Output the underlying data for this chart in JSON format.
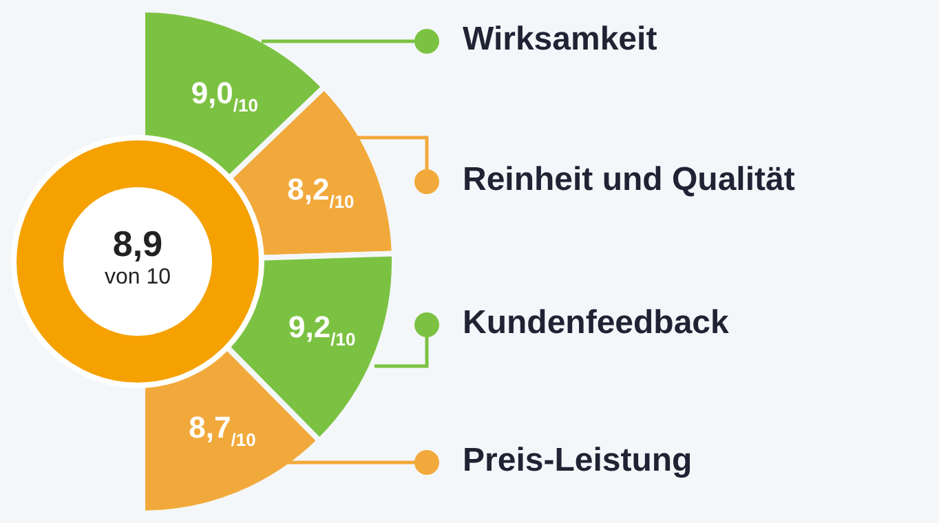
{
  "chart_data": {
    "type": "other",
    "categories": [
      "Wirksamkeit",
      "Reinheit und Qualität",
      "Kundenfeedback",
      "Preis-Leistung"
    ],
    "values": [
      9.0,
      8.2,
      9.2,
      8.7
    ],
    "value_labels": [
      "9,0$_{/10}$",
      "8,2$_{/10}$",
      "9,2$_{/10}$",
      "8,7$_{/10}$"
    ],
    "colors": [
      "#7cc242",
      "#f2a93b",
      "#7cc242",
      "#f2a93b"
    ],
    "annotations": [
      "8,9",
      "von 10"
    ]
  }
}
